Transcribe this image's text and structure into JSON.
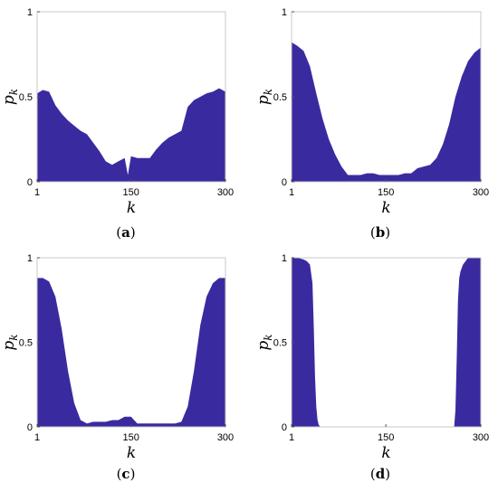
{
  "chart_data": [
    {
      "type": "area",
      "caption": "(a)",
      "caption_letter": "a",
      "xlabel": "k",
      "ylabel": "p",
      "ylabel_sub": "k",
      "xlim": [
        1,
        300
      ],
      "ylim": [
        0,
        1
      ],
      "xticks": [
        "1",
        "150",
        "300"
      ],
      "yticks": [
        "0",
        "0.5",
        "1"
      ],
      "fill_color": "#3a2aa0",
      "x": [
        1,
        10,
        20,
        30,
        40,
        50,
        60,
        70,
        80,
        90,
        100,
        110,
        120,
        130,
        140,
        145,
        150,
        160,
        170,
        180,
        190,
        200,
        210,
        220,
        230,
        240,
        250,
        260,
        270,
        280,
        290,
        300
      ],
      "y": [
        0.52,
        0.54,
        0.53,
        0.45,
        0.4,
        0.36,
        0.33,
        0.3,
        0.28,
        0.23,
        0.18,
        0.12,
        0.1,
        0.12,
        0.14,
        0.04,
        0.15,
        0.14,
        0.14,
        0.14,
        0.19,
        0.23,
        0.26,
        0.28,
        0.3,
        0.44,
        0.48,
        0.5,
        0.52,
        0.53,
        0.55,
        0.53
      ]
    },
    {
      "type": "area",
      "caption": "(b)",
      "caption_letter": "b",
      "xlabel": "k",
      "ylabel": "p",
      "ylabel_sub": "k",
      "xlim": [
        1,
        300
      ],
      "ylim": [
        0,
        1
      ],
      "xticks": [
        "1",
        "150",
        "300"
      ],
      "yticks": [
        "0",
        "0.5",
        "1"
      ],
      "fill_color": "#3a2aa0",
      "x": [
        1,
        10,
        20,
        30,
        40,
        50,
        60,
        70,
        80,
        90,
        100,
        110,
        120,
        130,
        140,
        150,
        160,
        170,
        180,
        190,
        200,
        210,
        220,
        230,
        240,
        250,
        260,
        270,
        280,
        290,
        300
      ],
      "y": [
        0.82,
        0.8,
        0.77,
        0.68,
        0.52,
        0.37,
        0.25,
        0.16,
        0.09,
        0.04,
        0.04,
        0.04,
        0.05,
        0.05,
        0.04,
        0.04,
        0.04,
        0.04,
        0.05,
        0.05,
        0.08,
        0.09,
        0.1,
        0.14,
        0.22,
        0.34,
        0.5,
        0.62,
        0.71,
        0.76,
        0.79
      ]
    },
    {
      "type": "area",
      "caption": "(c)",
      "caption_letter": "c",
      "xlabel": "k",
      "ylabel": "p",
      "ylabel_sub": "k",
      "xlim": [
        1,
        300
      ],
      "ylim": [
        0,
        1
      ],
      "xticks": [
        "1",
        "150",
        "300"
      ],
      "yticks": [
        "0",
        "0.5",
        "1"
      ],
      "fill_color": "#3a2aa0",
      "x": [
        1,
        10,
        20,
        30,
        40,
        50,
        60,
        70,
        80,
        90,
        100,
        110,
        120,
        130,
        140,
        150,
        160,
        170,
        180,
        190,
        200,
        210,
        220,
        230,
        240,
        250,
        260,
        270,
        280,
        290,
        300
      ],
      "y": [
        0.88,
        0.88,
        0.86,
        0.77,
        0.58,
        0.33,
        0.14,
        0.04,
        0.02,
        0.03,
        0.03,
        0.03,
        0.04,
        0.04,
        0.06,
        0.06,
        0.02,
        0.02,
        0.02,
        0.02,
        0.02,
        0.02,
        0.02,
        0.03,
        0.12,
        0.33,
        0.6,
        0.77,
        0.85,
        0.88,
        0.88
      ]
    },
    {
      "type": "area",
      "caption": "(d)",
      "caption_letter": "d",
      "xlabel": "k",
      "ylabel": "p",
      "ylabel_sub": "k",
      "xlim": [
        1,
        300
      ],
      "ylim": [
        0,
        1
      ],
      "xticks": [
        "1",
        "150",
        "300"
      ],
      "yticks": [
        "0",
        "0.5",
        "1"
      ],
      "fill_color": "#3a2aa0",
      "x": [
        1,
        10,
        20,
        25,
        30,
        34,
        36,
        38,
        40,
        42,
        44,
        47,
        50,
        60,
        100,
        150,
        200,
        250,
        258,
        260,
        262,
        264,
        266,
        268,
        272,
        276,
        280,
        290,
        300
      ],
      "y": [
        1.0,
        1.0,
        0.99,
        0.98,
        0.96,
        0.85,
        0.6,
        0.3,
        0.12,
        0.04,
        0.01,
        0,
        0,
        0,
        0,
        0,
        0,
        0,
        0,
        0.1,
        0.4,
        0.75,
        0.88,
        0.92,
        0.96,
        0.98,
        1.0,
        1.0,
        1.0
      ]
    }
  ]
}
